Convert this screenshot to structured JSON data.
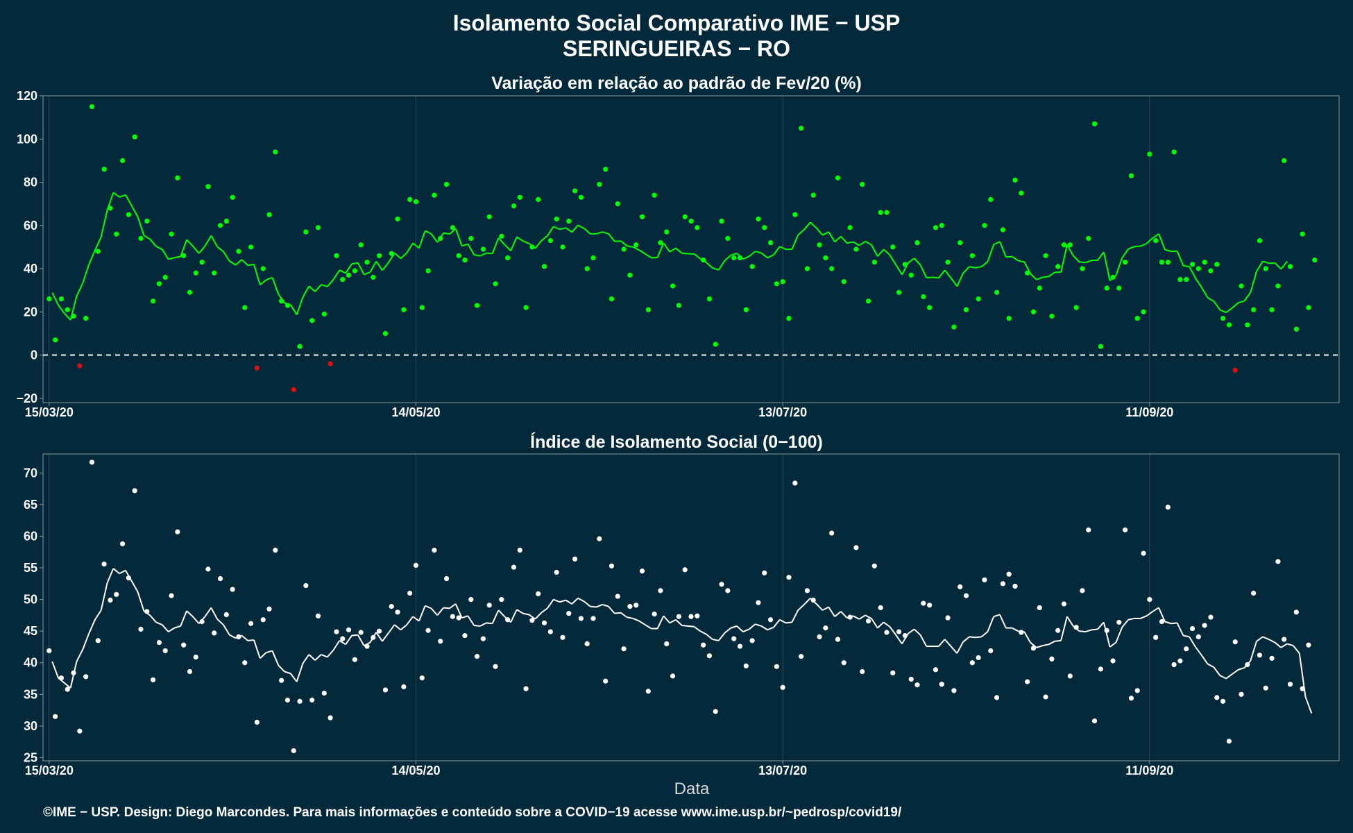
{
  "title_line1": "Isolamento Social Comparativo IME − USP",
  "title_line2": "SERINGUEIRAS − RO",
  "footer": "©IME − USP. Design: Diego Marcondes. Para mais informações e conteúdo sobre a COVID−19 acesse www.ime.usp.br/~pedrosp/covid19/",
  "colors": {
    "background": "#03293a",
    "positive": "#00ff00",
    "negative": "#e01010",
    "index": "#ffffff",
    "grid": "#2a4a55",
    "zero_line": "#ffffff"
  },
  "chart_data": [
    {
      "type": "scatter",
      "title": "Variação em relação ao padrão de Fev/20 (%)",
      "xlabel": "",
      "ylabel": "",
      "x_tick_labels": [
        "15/03/20",
        "14/05/20",
        "13/07/20",
        "11/09/20"
      ],
      "x_tick_days": [
        0,
        60,
        120,
        180
      ],
      "y_ticks": [
        -20,
        0,
        20,
        40,
        60,
        80,
        100,
        120
      ],
      "xlim_days": [
        -1,
        211
      ],
      "ylim": [
        -22,
        120
      ],
      "reference_line": 0,
      "grid": true,
      "series": [
        {
          "kind": "points",
          "values": [
            26,
            7,
            26,
            21,
            18,
            -5,
            17,
            115,
            48,
            86,
            68,
            56,
            90,
            65,
            101,
            54,
            62,
            25,
            33,
            36,
            56,
            82,
            46,
            29,
            38,
            43,
            78,
            38,
            60,
            62,
            73,
            48,
            22,
            50,
            -6,
            40,
            65,
            94,
            25,
            23,
            -16,
            4,
            57,
            16,
            59,
            19,
            -4,
            46,
            35,
            37,
            39,
            51,
            43,
            36,
            46,
            10,
            47,
            63,
            21,
            72,
            71,
            22,
            39,
            74,
            54,
            79,
            59,
            46,
            44,
            54,
            23,
            49,
            64,
            33,
            55,
            45,
            69,
            73,
            22,
            50,
            72,
            41,
            53,
            63,
            50,
            62,
            76,
            73,
            40,
            45,
            79,
            86,
            26,
            70,
            49,
            37,
            51,
            64,
            21,
            74,
            52,
            57,
            32,
            23,
            64,
            62,
            59,
            44,
            26,
            5,
            62,
            54,
            45,
            45,
            21,
            41,
            63,
            59,
            52,
            33,
            34,
            17,
            65,
            105,
            40,
            74,
            51,
            45,
            40,
            82,
            34,
            59,
            49,
            79,
            25,
            43,
            66,
            66,
            50,
            29,
            42,
            37,
            52,
            27,
            22,
            59,
            60,
            43,
            13,
            52,
            21,
            46,
            26,
            60,
            72,
            29,
            58,
            17,
            81,
            75,
            38,
            20,
            31,
            46,
            18,
            41,
            51,
            51,
            22,
            40,
            54,
            107,
            4,
            31,
            36,
            31,
            43,
            83,
            17,
            20,
            93,
            53,
            43,
            43,
            94,
            35,
            35,
            42,
            40,
            43,
            39,
            42,
            17,
            14,
            -7,
            32,
            14,
            21,
            53,
            40,
            21,
            32,
            90,
            41,
            12,
            56,
            22,
            44
          ]
        },
        {
          "kind": "moving_average",
          "values": [
            28.9,
            23.1,
            19.3,
            16.2,
            27.3,
            33.3,
            41.9,
            48.5,
            54.7,
            67.1,
            75.2,
            73.1,
            74.1,
            69.1,
            63.9,
            55.4,
            53.6,
            50.3,
            48.9,
            44.3,
            45.1,
            45.6,
            53.4,
            50.4,
            47.1,
            50.5,
            55.3,
            50.1,
            47.9,
            43.5,
            41.7,
            44.2,
            41.5,
            42.0,
            32.5,
            34.8,
            35.9,
            28.2,
            24.1,
            23.2,
            18.7,
            26.8,
            31.9,
            29.4,
            32.6,
            31.7,
            35.0,
            39.3,
            37.9,
            42.2,
            42.7,
            37.2,
            38.4,
            43.4,
            39.2,
            42.8,
            47.2,
            44.7,
            47.3,
            51.8,
            49.5,
            57.5,
            56.1,
            52.2,
            56.5,
            56.0,
            58.5,
            50.5,
            51.4,
            46.4,
            45.9,
            47.2,
            47.0,
            54.2,
            51.1,
            48.3,
            54.7,
            52.8,
            51.6,
            49.4,
            52.9,
            55.2,
            59.5,
            58.2,
            58.9,
            56.9,
            60.1,
            58.6,
            56.1,
            56.1,
            57.0,
            56.1,
            52.6,
            52.8,
            50.5,
            50.0,
            48.6,
            46.8,
            45.0,
            45.2,
            51.8,
            47.8,
            49.5,
            47.1,
            46.9,
            46.8,
            44.6,
            42.8,
            40.3,
            39.4,
            43.7,
            46.2,
            47.1,
            44.4,
            45.7,
            48.0,
            47.2,
            45.0,
            46.4,
            50.2,
            48.9,
            49.0,
            55.6,
            58.1,
            61.4,
            58.8,
            55.5,
            57.0,
            52.4,
            54.9,
            51.8,
            52.4,
            50.7,
            52.6,
            51.0,
            45.7,
            48.9,
            46.3,
            41.8,
            37.2,
            42.7,
            44.8,
            41.7,
            35.8,
            36.0,
            35.7,
            39.3,
            35.7,
            31.8,
            37.9,
            40.9,
            40.4,
            40.9,
            43.2,
            51.2,
            52.5,
            45.4,
            45.6,
            43.7,
            43.1,
            37.7,
            34.9,
            36.0,
            36.4,
            38.3,
            38.4,
            51.0,
            46.0,
            43.1,
            42.8,
            43.8,
            43.9,
            47.7,
            34.5,
            36.9,
            45.0,
            49.1,
            50.2,
            50.4,
            51.6,
            54.2,
            56.1,
            48.8,
            48.0,
            48.1,
            41.4,
            40.9,
            35.6,
            31.3,
            26.5,
            24.9,
            20.9,
            19.7,
            21.8,
            24.2,
            25.1,
            29.0,
            38.8,
            43.4,
            42.5,
            42.6,
            39.8,
            43.4
          ]
        }
      ]
    },
    {
      "type": "scatter",
      "title": "Índice de Isolamento Social (0−100)",
      "xlabel": "Data",
      "ylabel": "",
      "x_tick_labels": [
        "15/03/20",
        "14/05/20",
        "13/07/20",
        "11/09/20"
      ],
      "x_tick_days": [
        0,
        60,
        120,
        180
      ],
      "y_ticks": [
        25,
        30,
        35,
        40,
        45,
        50,
        55,
        60,
        65,
        70
      ],
      "xlim_days": [
        -1,
        211
      ],
      "ylim": [
        24.5,
        73
      ],
      "grid": true,
      "series": [
        {
          "kind": "points",
          "values": [
            41.9,
            31.5,
            37.6,
            35.8,
            38.4,
            29.2,
            37.8,
            71.7,
            43.5,
            55.6,
            49.9,
            50.8,
            58.8,
            53.4,
            67.2,
            45.3,
            48.1,
            37.3,
            43.2,
            41.9,
            50.6,
            60.7,
            42.8,
            38.6,
            40.9,
            46.5,
            54.8,
            44.7,
            53.3,
            47.6,
            51.6,
            44.1,
            40.0,
            46.2,
            30.6,
            46.8,
            48.5,
            57.8,
            37.2,
            34.1,
            26.1,
            33.9,
            52.2,
            34.1,
            47.4,
            35.2,
            31.3,
            44.9,
            43.8,
            45.2,
            40.5,
            44.8,
            42.6,
            44.0,
            45.0,
            35.7,
            48.9,
            48.0,
            36.2,
            51.0,
            55.4,
            37.6,
            45.1,
            57.8,
            43.4,
            53.3,
            47.3,
            47.1,
            44.3,
            50.0,
            41.0,
            43.8,
            49.1,
            39.4,
            50.0,
            46.8,
            55.1,
            57.8,
            35.9,
            46.7,
            50.9,
            46.3,
            44.9,
            54.3,
            44.0,
            47.8,
            56.4,
            47.0,
            43.0,
            47.0,
            59.6,
            37.1,
            55.3,
            50.5,
            42.2,
            48.9,
            49.1,
            54.5,
            35.5,
            47.7,
            51.4,
            43.0,
            37.9,
            47.3,
            54.7,
            47.3,
            47.4,
            42.8,
            41.1,
            32.3,
            52.4,
            51.4,
            43.8,
            42.6,
            39.5,
            43.5,
            49.5,
            54.2,
            46.8,
            39.4,
            36.1,
            53.5,
            68.4,
            41.0,
            51.4,
            49.9,
            44.1,
            45.5,
            60.5,
            43.7,
            40.0,
            47.2,
            58.2,
            38.6,
            46.6,
            55.3,
            48.7,
            44.8,
            38.4,
            44.9,
            44.3,
            37.4,
            36.5,
            49.4,
            49.1,
            38.9,
            36.6,
            47.1,
            35.6,
            52.0,
            50.6,
            40.0,
            40.8,
            53.1,
            41.9,
            34.5,
            52.5,
            54.0,
            52.1,
            44.8,
            37.0,
            42.3,
            48.7,
            34.6,
            40.6,
            45.1,
            49.3,
            37.9,
            45.6,
            51.4,
            61.0,
            30.8,
            39.0,
            45.1,
            40.3,
            46.4,
            61.0,
            34.4,
            35.6,
            57.3,
            50.0,
            44.0,
            46.5,
            64.6,
            39.7,
            40.3,
            42.2,
            45.4,
            44.1,
            45.9,
            47.2,
            34.5,
            33.9,
            27.6,
            43.3,
            35.0,
            39.7,
            51.0,
            41.2,
            36.0,
            40.7,
            56.0,
            43.7,
            36.6,
            48.0,
            35.9,
            42.8
          ]
        },
        {
          "kind": "moving_average",
          "values": [
            40.2,
            37.6,
            36.8,
            36.0,
            40.2,
            42.1,
            44.6,
            46.8,
            48.3,
            52.6,
            54.9,
            54.1,
            54.6,
            52.9,
            51.2,
            48.2,
            47.5,
            46.4,
            46.0,
            44.9,
            45.5,
            45.8,
            48.2,
            47.3,
            46.2,
            47.3,
            48.7,
            46.9,
            46.0,
            44.4,
            43.9,
            44.3,
            43.5,
            43.6,
            40.7,
            41.6,
            41.9,
            39.6,
            38.6,
            38.3,
            37.0,
            39.9,
            41.3,
            40.4,
            41.3,
            40.9,
            42.0,
            43.5,
            42.9,
            44.3,
            44.4,
            42.7,
            43.2,
            44.8,
            43.4,
            44.7,
            46.0,
            45.2,
            46.0,
            47.3,
            46.6,
            49.0,
            48.6,
            47.5,
            48.7,
            48.6,
            49.3,
            47.1,
            47.4,
            45.9,
            45.8,
            46.3,
            46.2,
            48.3,
            47.3,
            46.4,
            48.4,
            47.8,
            47.6,
            46.9,
            47.9,
            48.6,
            50.0,
            49.6,
            49.9,
            49.3,
            50.2,
            49.7,
            48.9,
            48.8,
            49.2,
            48.9,
            47.8,
            47.9,
            47.2,
            47.0,
            46.6,
            46.0,
            45.4,
            45.4,
            47.4,
            46.3,
            46.8,
            45.9,
            45.8,
            45.7,
            45.0,
            44.5,
            43.7,
            43.5,
            44.7,
            45.5,
            45.8,
            44.9,
            45.3,
            46.1,
            45.8,
            45.2,
            45.6,
            46.8,
            46.3,
            46.4,
            48.3,
            49.2,
            50.2,
            49.3,
            48.3,
            48.8,
            47.3,
            48.1,
            47.1,
            47.4,
            46.9,
            47.5,
            47.0,
            45.5,
            46.4,
            45.7,
            44.4,
            43.0,
            44.6,
            45.3,
            44.4,
            42.6,
            42.6,
            42.6,
            43.7,
            42.6,
            41.5,
            43.3,
            44.1,
            44.0,
            44.1,
            44.9,
            47.3,
            47.6,
            45.5,
            45.5,
            45.0,
            44.9,
            43.2,
            42.4,
            42.7,
            42.9,
            43.4,
            43.5,
            47.3,
            45.8,
            45.0,
            44.9,
            45.2,
            45.3,
            46.4,
            42.5,
            43.2,
            45.6,
            46.8,
            47.0,
            47.0,
            47.4,
            48.1,
            48.7,
            46.5,
            46.2,
            46.3,
            44.3,
            44.1,
            42.5,
            41.2,
            39.8,
            39.3,
            38.0,
            37.5,
            38.2,
            38.9,
            39.2,
            40.3,
            43.4,
            44.1,
            43.7,
            43.2,
            42.4,
            43.0,
            42.7,
            41.5,
            34.6,
            32.0
          ]
        }
      ]
    }
  ]
}
